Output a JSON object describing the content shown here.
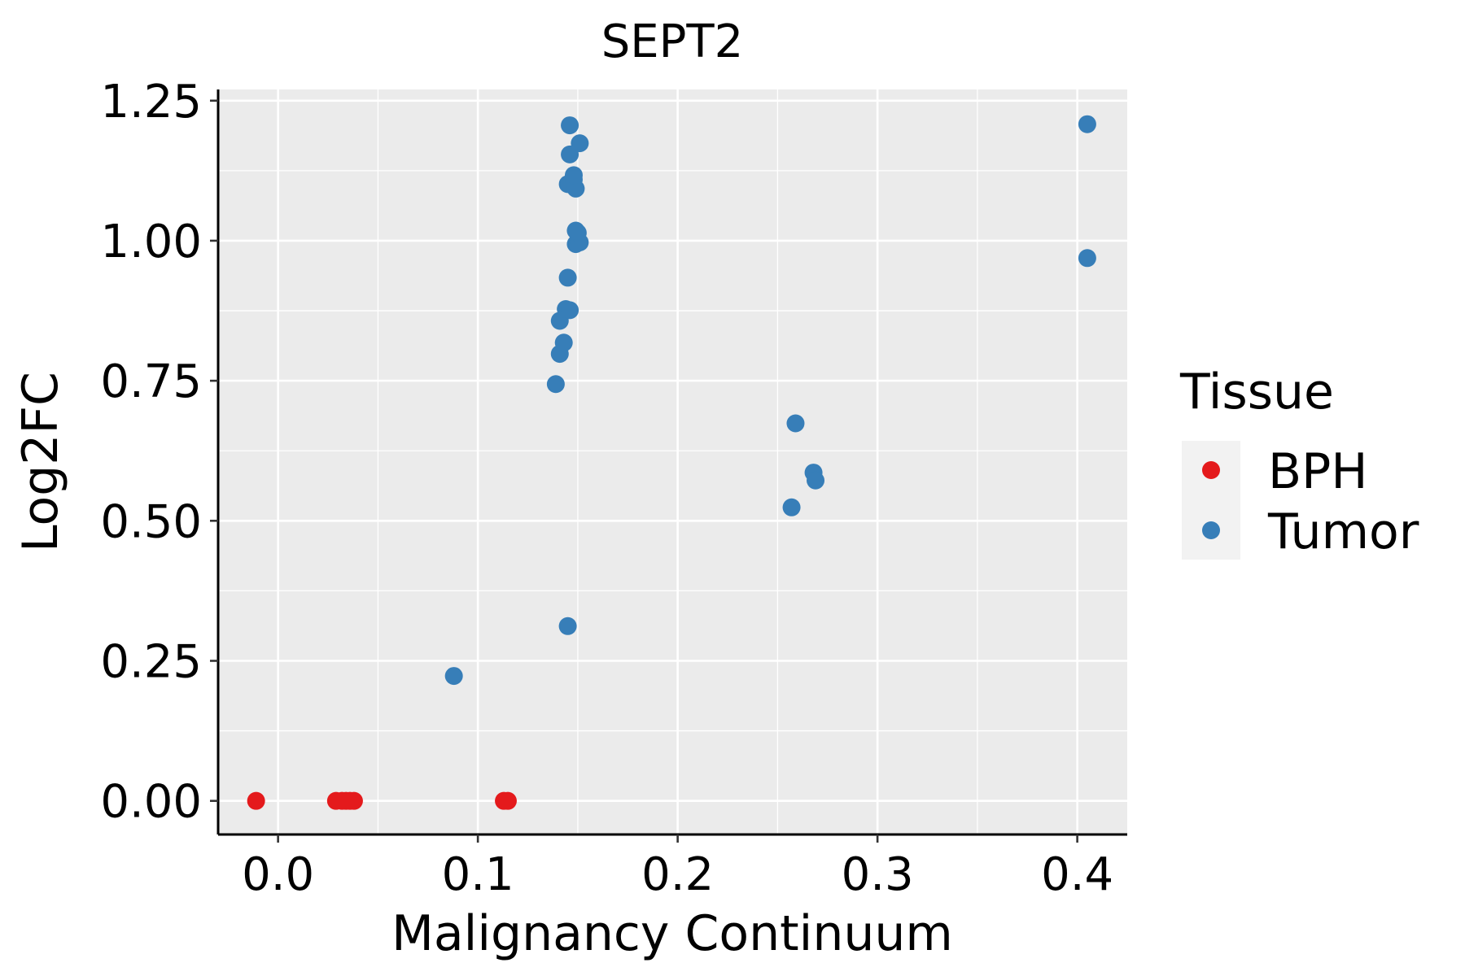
{
  "chart_data": {
    "type": "scatter",
    "title": "SEPT2",
    "xlabel": "Malignancy Continuum",
    "ylabel": "Log2FC",
    "xlim": [
      -0.03,
      0.425
    ],
    "ylim": [
      -0.06,
      1.27
    ],
    "x_ticks": [
      0.0,
      0.1,
      0.2,
      0.3,
      0.4
    ],
    "x_tick_labels": [
      "0.0",
      "0.1",
      "0.2",
      "0.3",
      "0.4"
    ],
    "y_ticks": [
      0.0,
      0.25,
      0.5,
      0.75,
      1.0,
      1.25
    ],
    "y_tick_labels": [
      "0.00",
      "0.25",
      "0.50",
      "0.75",
      "1.00",
      "1.25"
    ],
    "grid": true,
    "legend": {
      "title": "Tissue",
      "position": "right",
      "entries": [
        "BPH",
        "Tumor"
      ]
    },
    "colors": {
      "BPH": "#E41A1C",
      "Tumor": "#377EB8",
      "panel_background": "#EBEBEB",
      "grid": "#FFFFFF"
    },
    "series": [
      {
        "name": "BPH",
        "points": [
          {
            "x": -0.011,
            "y": 0.0
          },
          {
            "x": 0.029,
            "y": 0.0
          },
          {
            "x": 0.032,
            "y": 0.0
          },
          {
            "x": 0.034,
            "y": 0.0
          },
          {
            "x": 0.036,
            "y": 0.0
          },
          {
            "x": 0.038,
            "y": 0.0
          },
          {
            "x": 0.113,
            "y": 0.0
          },
          {
            "x": 0.115,
            "y": 0.0
          }
        ]
      },
      {
        "name": "Tumor",
        "points": [
          {
            "x": 0.088,
            "y": 0.223
          },
          {
            "x": 0.145,
            "y": 0.312
          },
          {
            "x": 0.139,
            "y": 0.744
          },
          {
            "x": 0.141,
            "y": 0.798
          },
          {
            "x": 0.143,
            "y": 0.818
          },
          {
            "x": 0.141,
            "y": 0.857
          },
          {
            "x": 0.144,
            "y": 0.878
          },
          {
            "x": 0.146,
            "y": 0.876
          },
          {
            "x": 0.145,
            "y": 0.934
          },
          {
            "x": 0.149,
            "y": 0.994
          },
          {
            "x": 0.151,
            "y": 0.997
          },
          {
            "x": 0.149,
            "y": 1.018
          },
          {
            "x": 0.15,
            "y": 1.014
          },
          {
            "x": 0.145,
            "y": 1.101
          },
          {
            "x": 0.148,
            "y": 1.109
          },
          {
            "x": 0.149,
            "y": 1.093
          },
          {
            "x": 0.148,
            "y": 1.117
          },
          {
            "x": 0.146,
            "y": 1.154
          },
          {
            "x": 0.151,
            "y": 1.174
          },
          {
            "x": 0.146,
            "y": 1.206
          },
          {
            "x": 0.257,
            "y": 0.524
          },
          {
            "x": 0.259,
            "y": 0.674
          },
          {
            "x": 0.268,
            "y": 0.586
          },
          {
            "x": 0.269,
            "y": 0.572
          },
          {
            "x": 0.405,
            "y": 0.969
          },
          {
            "x": 0.405,
            "y": 1.208
          }
        ]
      }
    ]
  }
}
